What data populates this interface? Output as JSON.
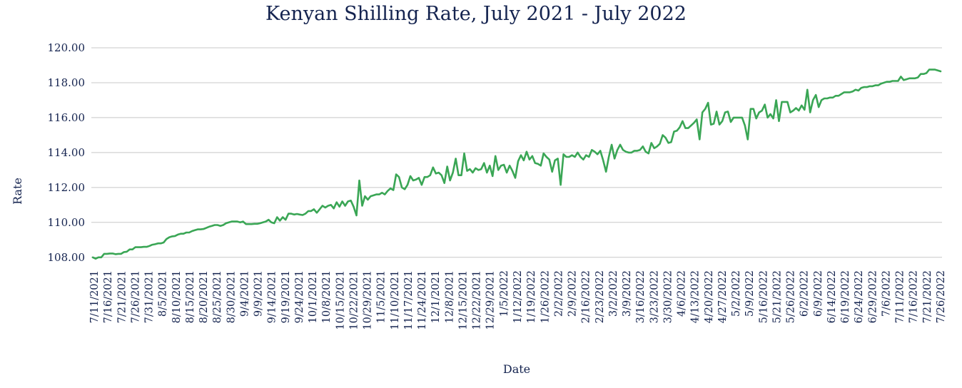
{
  "chart_data": {
    "type": "line",
    "title": "Kenyan Shilling Rate, July 2021 - July 2022",
    "xlabel": "Date",
    "ylabel": "Rate",
    "ylim": [
      107.5,
      120.0
    ],
    "yticks": [
      "108.00",
      "110.00",
      "112.00",
      "114.00",
      "116.00",
      "118.00",
      "120.00"
    ],
    "ytick_values": [
      108,
      110,
      112,
      114,
      116,
      118,
      120
    ],
    "grid": true,
    "line_color": "#3aa655",
    "x_tick_labels": [
      "7/11/2021",
      "7/16/2021",
      "7/21/2021",
      "7/26/2021",
      "7/31/2021",
      "8/5/2021",
      "8/10/2021",
      "8/15/2021",
      "8/20/2021",
      "8/25/2021",
      "8/30/2021",
      "9/4/2021",
      "9/9/2021",
      "9/14/2021",
      "9/19/2021",
      "9/24/2021",
      "10/1/2021",
      "10/8/2021",
      "10/15/2021",
      "10/22/2021",
      "10/29/2021",
      "11/5/2021",
      "11/10/2021",
      "11/17/2021",
      "11/24/2021",
      "12/1/2021",
      "12/8/2021",
      "12/15/2021",
      "12/22/2021",
      "12/29/2021",
      "1/5/2022",
      "1/12/2022",
      "1/19/2022",
      "1/26/2022",
      "2/2/2022",
      "2/9/2022",
      "2/16/2022",
      "2/23/2022",
      "3/2/2022",
      "3/9/2022",
      "3/16/2022",
      "3/23/2022",
      "3/30/2022",
      "4/6/2022",
      "4/13/2022",
      "4/20/2022",
      "4/27/2022",
      "5/2/2022",
      "5/9/2022",
      "5/16/2022",
      "5/21/2022",
      "5/26/2022",
      "6/2/2022",
      "6/9/2022",
      "6/14/2022",
      "6/19/2022",
      "6/24/2022",
      "6/29/2022",
      "7/6/2022",
      "7/11/2022",
      "7/16/2022",
      "7/21/2022",
      "7/26/2022"
    ],
    "values": [
      108.0,
      107.92,
      108.0,
      108.0,
      108.2,
      108.2,
      108.22,
      108.22,
      108.18,
      108.2,
      108.2,
      108.3,
      108.32,
      108.45,
      108.45,
      108.58,
      108.58,
      108.58,
      108.6,
      108.6,
      108.65,
      108.72,
      108.75,
      108.8,
      108.8,
      108.85,
      109.05,
      109.15,
      109.2,
      109.22,
      109.3,
      109.35,
      109.35,
      109.42,
      109.42,
      109.5,
      109.55,
      109.6,
      109.6,
      109.62,
      109.68,
      109.75,
      109.8,
      109.85,
      109.85,
      109.8,
      109.85,
      109.95,
      110.0,
      110.05,
      110.05,
      110.05,
      110.0,
      110.05,
      109.9,
      109.9,
      109.9,
      109.92,
      109.92,
      109.95,
      110.0,
      110.05,
      110.15,
      110.0,
      109.95,
      110.3,
      110.1,
      110.3,
      110.15,
      110.5,
      110.5,
      110.45,
      110.48,
      110.45,
      110.42,
      110.5,
      110.65,
      110.65,
      110.75,
      110.55,
      110.75,
      110.95,
      110.85,
      110.95,
      111.0,
      110.8,
      111.15,
      110.9,
      111.2,
      110.95,
      111.2,
      111.25,
      110.9,
      110.4,
      112.4,
      110.95,
      111.5,
      111.3,
      111.5,
      111.55,
      111.6,
      111.6,
      111.7,
      111.6,
      111.8,
      111.95,
      111.85,
      112.75,
      112.6,
      112.0,
      111.9,
      112.15,
      112.65,
      112.4,
      112.45,
      112.55,
      112.15,
      112.6,
      112.6,
      112.7,
      113.15,
      112.8,
      112.85,
      112.7,
      112.25,
      113.2,
      112.4,
      112.85,
      113.65,
      112.7,
      112.7,
      113.95,
      112.95,
      113.05,
      112.85,
      113.1,
      113.0,
      113.05,
      113.4,
      112.85,
      113.25,
      112.65,
      113.8,
      113.0,
      113.25,
      113.3,
      112.85,
      113.25,
      112.95,
      112.55,
      113.5,
      113.85,
      113.55,
      114.05,
      113.6,
      113.8,
      113.4,
      113.35,
      113.25,
      113.95,
      113.75,
      113.6,
      112.9,
      113.55,
      113.65,
      112.15,
      113.9,
      113.75,
      113.75,
      113.85,
      113.75,
      114.0,
      113.75,
      113.6,
      113.85,
      113.75,
      114.15,
      114.05,
      113.9,
      114.1,
      113.55,
      112.9,
      113.75,
      114.45,
      113.65,
      114.15,
      114.45,
      114.15,
      114.05,
      114.0,
      114.0,
      114.1,
      114.1,
      114.15,
      114.35,
      114.05,
      113.95,
      114.55,
      114.25,
      114.35,
      114.5,
      115.0,
      114.85,
      114.55,
      114.6,
      115.2,
      115.25,
      115.45,
      115.8,
      115.4,
      115.4,
      115.55,
      115.7,
      115.9,
      114.75,
      116.3,
      116.5,
      116.85,
      115.6,
      115.65,
      116.35,
      115.6,
      115.8,
      116.3,
      116.35,
      115.75,
      116.0,
      116.0,
      116.0,
      116.0,
      115.55,
      114.75,
      116.5,
      116.5,
      115.95,
      116.3,
      116.4,
      116.75,
      116.0,
      116.2,
      115.95,
      117.0,
      115.8,
      116.9,
      116.9,
      116.9,
      116.3,
      116.4,
      116.55,
      116.4,
      116.7,
      116.45,
      117.6,
      116.3,
      117.0,
      117.3,
      116.6,
      117.0,
      117.1,
      117.1,
      117.15,
      117.15,
      117.25,
      117.25,
      117.35,
      117.45,
      117.45,
      117.45,
      117.5,
      117.6,
      117.55,
      117.7,
      117.75,
      117.75,
      117.8,
      117.8,
      117.85,
      117.85,
      117.95,
      118.0,
      118.05,
      118.05,
      118.1,
      118.1,
      118.1,
      118.35,
      118.15,
      118.2,
      118.25,
      118.25,
      118.25,
      118.3,
      118.5,
      118.5,
      118.55,
      118.75,
      118.75,
      118.75,
      118.7,
      118.65
    ]
  }
}
